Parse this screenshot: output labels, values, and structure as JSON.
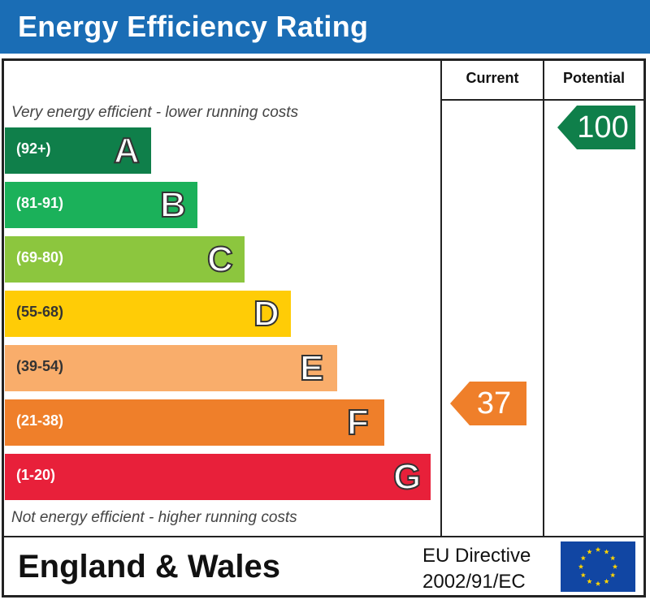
{
  "header": {
    "title": "Energy Efficiency Rating"
  },
  "columns": {
    "current": "Current",
    "potential": "Potential"
  },
  "captions": {
    "top": "Very energy efficient - lower running costs",
    "bottom": "Not energy efficient - higher running costs"
  },
  "footer": {
    "region": "England & Wales",
    "directive_line1": "EU Directive",
    "directive_line2": "2002/91/EC"
  },
  "chart_data": {
    "type": "bar",
    "title": "Energy Efficiency Rating",
    "categories": [
      "A",
      "B",
      "C",
      "D",
      "E",
      "F",
      "G"
    ],
    "bands": [
      {
        "letter": "A",
        "range": "(92+)",
        "color": "#0f7f4a"
      },
      {
        "letter": "B",
        "range": "(81-91)",
        "color": "#1bb15a"
      },
      {
        "letter": "C",
        "range": "(69-80)",
        "color": "#8cc63e"
      },
      {
        "letter": "D",
        "range": "(55-68)",
        "color": "#ffcc06"
      },
      {
        "letter": "E",
        "range": "(39-54)",
        "color": "#f9ad6b"
      },
      {
        "letter": "F",
        "range": "(21-38)",
        "color": "#ef7f2a"
      },
      {
        "letter": "G",
        "range": "(1-20)",
        "color": "#e8203a"
      }
    ],
    "current": {
      "value": 37,
      "label": "37",
      "band": "F",
      "color": "#ef7f2a"
    },
    "potential": {
      "value": 100,
      "label": "100",
      "band": "A",
      "color": "#0f7f4a"
    }
  }
}
